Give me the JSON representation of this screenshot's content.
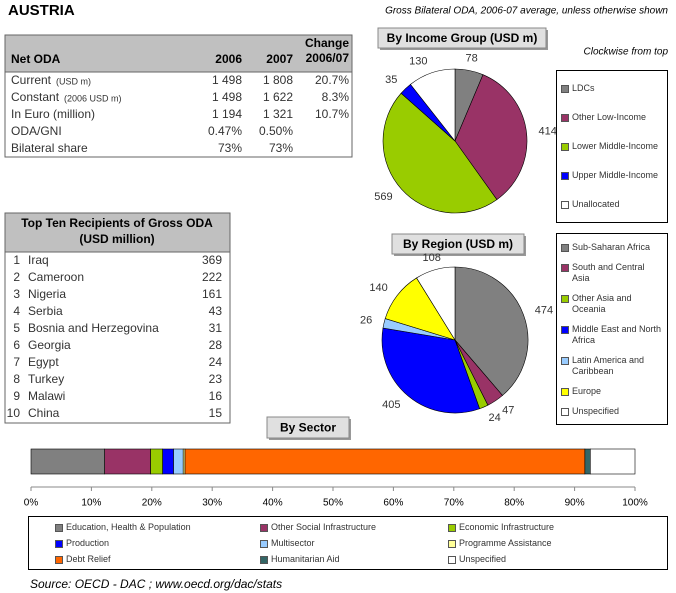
{
  "header": {
    "title": "AUSTRIA",
    "subtitle": "Gross Bilateral ODA, 2006-07 average, unless otherwise shown",
    "note": "Clockwise from top"
  },
  "net_oda": {
    "columns": [
      "Net ODA",
      "2006",
      "2007",
      [
        "Change",
        "2006/07"
      ]
    ],
    "rows": [
      {
        "label": "Current",
        "unit": "(USD m)",
        "cells": [
          "1 498",
          "1 808",
          "20.7%"
        ]
      },
      {
        "label": "Constant",
        "unit": "(2006 USD m)",
        "cells": [
          "1 498",
          "1 622",
          "8.3%"
        ]
      },
      {
        "label": "In Euro (million)",
        "cells": [
          "1 194",
          "1 321",
          "10.7%"
        ]
      },
      {
        "label": "ODA/GNI",
        "cells": [
          "0.47%",
          "0.50%"
        ]
      },
      {
        "label": "Bilateral share",
        "cells": [
          "73%",
          "73%"
        ]
      }
    ]
  },
  "top_ten": {
    "title": [
      "Top Ten Recipients of Gross ODA",
      "(USD million)"
    ],
    "rows": [
      [
        "1",
        "Iraq",
        "369"
      ],
      [
        "2",
        "Cameroon",
        "222"
      ],
      [
        "3",
        "Nigeria",
        "161"
      ],
      [
        "4",
        "Serbia",
        "43"
      ],
      [
        "5",
        "Bosnia and Herzegovina",
        "31"
      ],
      [
        "6",
        "Georgia",
        "28"
      ],
      [
        "7",
        "Egypt",
        "24"
      ],
      [
        "8",
        "Turkey",
        "23"
      ],
      [
        "9",
        "Malawi",
        "16"
      ],
      [
        "10",
        "China",
        "15"
      ]
    ]
  },
  "chart_data": [
    {
      "type": "pie",
      "title": "By Income Group (USD m)",
      "categories": [
        "LDCs",
        "Other Low-Income",
        "Lower Middle-Income",
        "Upper Middle-Income",
        "Unallocated"
      ],
      "values": [
        78,
        414,
        569,
        35,
        130
      ],
      "colors": [
        "#808080",
        "#993366",
        "#99cc00",
        "#0000ff",
        "#ffffff"
      ]
    },
    {
      "type": "pie",
      "title": "By Region (USD m)",
      "categories": [
        "Sub-Saharan Africa",
        "South and Central Asia",
        "Other Asia and Oceania",
        "Middle East and North Africa",
        "Latin America and Caribbean",
        "Europe",
        "Unspecified"
      ],
      "values": [
        474,
        47,
        24,
        405,
        26,
        140,
        108
      ],
      "colors": [
        "#808080",
        "#993366",
        "#99cc00",
        "#0000ff",
        "#99ccff",
        "#ffff00",
        "#ffffff"
      ]
    },
    {
      "type": "stacked-bar",
      "title": "By Sector",
      "series": [
        {
          "name": "Education, Health & Population",
          "color": "#808080",
          "values": [
            12.2
          ]
        },
        {
          "name": "Other Social Infrastructure",
          "color": "#993366",
          "values": [
            7.6
          ]
        },
        {
          "name": "Economic Infrastructure",
          "color": "#99cc00",
          "values": [
            2.0
          ]
        },
        {
          "name": "Production",
          "color": "#0000ff",
          "values": [
            1.8
          ]
        },
        {
          "name": "Multisector",
          "color": "#99ccff",
          "values": [
            1.6
          ]
        },
        {
          "name": "Programme Assistance",
          "color": "#ffff99",
          "values": [
            0.3
          ]
        },
        {
          "name": "Debt Relief",
          "color": "#ff6600",
          "values": [
            66.2
          ]
        },
        {
          "name": "Humanitarian Aid",
          "color": "#336666",
          "values": [
            0.9
          ]
        },
        {
          "name": "Unspecified",
          "color": "#ffffff",
          "values": [
            7.4
          ]
        }
      ],
      "xlim": [
        0,
        100
      ],
      "xticks": [
        {
          "value": 0,
          "label": "0%"
        },
        {
          "value": 10,
          "label": "10%"
        },
        {
          "value": 20,
          "label": "20%"
        },
        {
          "value": 30,
          "label": "30%"
        },
        {
          "value": 40,
          "label": "40%"
        },
        {
          "value": 50,
          "label": "50%"
        },
        {
          "value": 60,
          "label": "60%"
        },
        {
          "value": 70,
          "label": "70%"
        },
        {
          "value": 80,
          "label": "80%"
        },
        {
          "value": 90,
          "label": "90%"
        },
        {
          "value": 100,
          "label": "100%"
        }
      ]
    }
  ],
  "source": "Source:  OECD - DAC ; www.oecd.org/dac/stats"
}
